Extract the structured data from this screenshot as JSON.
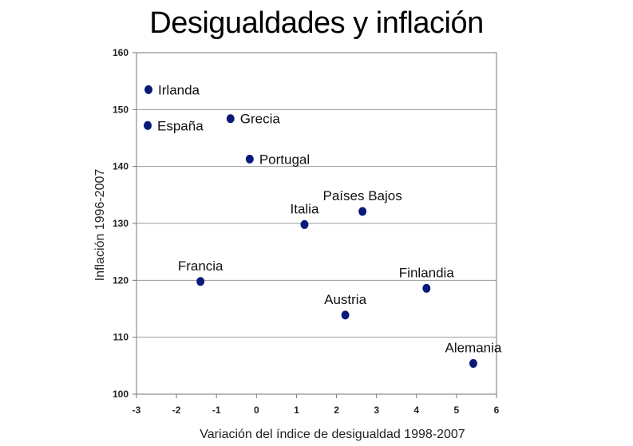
{
  "chart_data": {
    "type": "scatter",
    "title": "Desigualdades y inflación",
    "xlabel": "Variación del  índice de desigualdad 1998-2007",
    "ylabel": "Inflación 1996-2007",
    "xlim": [
      -3,
      6
    ],
    "ylim": [
      100,
      160
    ],
    "xticks": [
      -3,
      -2,
      -1,
      0,
      1,
      2,
      3,
      4,
      5,
      6
    ],
    "yticks": [
      100,
      110,
      120,
      130,
      140,
      150,
      160
    ],
    "grid": "horizontal",
    "marker_color": "#0a1a7a",
    "points": [
      {
        "label": "Irlanda",
        "x": -2.7,
        "y": 153.5,
        "label_pos": "right"
      },
      {
        "label": "España",
        "x": -2.72,
        "y": 147.2,
        "label_pos": "right"
      },
      {
        "label": "Grecia",
        "x": -0.65,
        "y": 148.4,
        "label_pos": "right"
      },
      {
        "label": "Portugal",
        "x": -0.17,
        "y": 141.3,
        "label_pos": "right"
      },
      {
        "label": "Italia",
        "x": 1.2,
        "y": 129.8,
        "label_pos": "above"
      },
      {
        "label": "Países Bajos",
        "x": 2.65,
        "y": 132.1,
        "label_pos": "above"
      },
      {
        "label": "Francia",
        "x": -1.4,
        "y": 119.8,
        "label_pos": "above"
      },
      {
        "label": "Austria",
        "x": 2.22,
        "y": 113.9,
        "label_pos": "above"
      },
      {
        "label": "Finlandia",
        "x": 4.25,
        "y": 118.6,
        "label_pos": "above"
      },
      {
        "label": "Alemania",
        "x": 5.42,
        "y": 105.4,
        "label_pos": "above"
      }
    ]
  }
}
